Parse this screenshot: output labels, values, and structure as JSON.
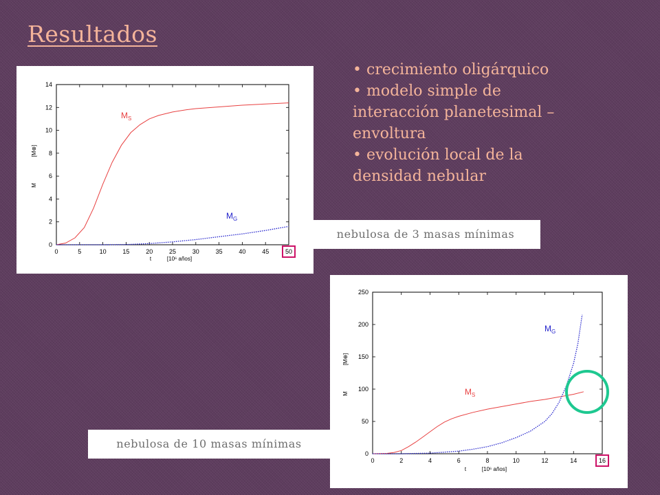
{
  "slide": {
    "title": "Resultados",
    "bullets": [
      "crecimiento oligárquico",
      "modelo simple de interacción planetesimal – envoltura",
      "evolución local de la densidad nebular"
    ]
  },
  "captions": {
    "chart1": "nebulosa de 3 masas mínimas",
    "chart2": "nebulosa de 10 masas mínimas"
  },
  "colors": {
    "background": "#5e3d5e",
    "title_text": "#f4b49a",
    "ms_curve": "#e84040",
    "mg_curve": "#2222cc",
    "highlight_box": "#cc1166",
    "highlight_circle": "#1ec890"
  },
  "chart_data": [
    {
      "type": "line",
      "title": "",
      "xlabel_main": "t",
      "xlabel_unit": "[10⁶ años]",
      "ylabel_main": "M",
      "ylabel_unit": "[M⊕]",
      "xlim": [
        0,
        50
      ],
      "ylim": [
        0,
        14
      ],
      "xticks": [
        "0",
        "5",
        "10",
        "15",
        "20",
        "25",
        "30",
        "35",
        "40",
        "45",
        "50"
      ],
      "yticks": [
        "0",
        "2",
        "4",
        "6",
        "8",
        "10",
        "12",
        "14"
      ],
      "grid": false,
      "highlighted_tick": "50",
      "series": [
        {
          "name": "MS",
          "label_main": "M",
          "label_sub": "S",
          "style": "solid",
          "color": "#e84040",
          "x": [
            0,
            2,
            4,
            6,
            8,
            10,
            12,
            14,
            16,
            18,
            20,
            22,
            25,
            28,
            30,
            35,
            40,
            45,
            50
          ],
          "y": [
            0,
            0.15,
            0.6,
            1.5,
            3.2,
            5.3,
            7.2,
            8.7,
            9.8,
            10.5,
            11.0,
            11.3,
            11.6,
            11.8,
            11.9,
            12.05,
            12.2,
            12.3,
            12.4
          ]
        },
        {
          "name": "MG",
          "label_main": "M",
          "label_sub": "G",
          "style": "dotted",
          "color": "#2222cc",
          "x": [
            0,
            5,
            10,
            15,
            20,
            25,
            30,
            35,
            40,
            45,
            50
          ],
          "y": [
            0,
            0,
            0,
            0.02,
            0.1,
            0.25,
            0.45,
            0.7,
            0.95,
            1.25,
            1.6
          ]
        }
      ]
    },
    {
      "type": "line",
      "title": "",
      "xlabel_main": "t",
      "xlabel_unit": "[10⁶ años]",
      "ylabel_main": "M",
      "ylabel_unit": "[M⊕]",
      "xlim": [
        0,
        16
      ],
      "ylim": [
        0,
        250
      ],
      "xticks": [
        "0",
        "2",
        "4",
        "6",
        "8",
        "10",
        "12",
        "14",
        "16"
      ],
      "yticks": [
        "0",
        "50",
        "100",
        "150",
        "200",
        "250"
      ],
      "grid": false,
      "highlighted_tick": "16",
      "series": [
        {
          "name": "MS",
          "label_main": "M",
          "label_sub": "S",
          "style": "solid",
          "color": "#e84040",
          "x": [
            0,
            1,
            1.5,
            2,
            2.5,
            3,
            3.5,
            4,
            4.5,
            5,
            5.5,
            6,
            7,
            8,
            9,
            10,
            11,
            12,
            13,
            14,
            14.7
          ],
          "y": [
            0,
            0.5,
            2,
            5,
            11,
            18,
            26,
            34,
            42,
            49,
            54,
            58,
            64,
            69,
            73,
            77,
            81,
            84,
            88,
            92,
            96
          ]
        },
        {
          "name": "MG",
          "label_main": "M",
          "label_sub": "G",
          "style": "dotted",
          "color": "#2222cc",
          "x": [
            0,
            2,
            4,
            6,
            7,
            8,
            9,
            10,
            11,
            12,
            12.5,
            13,
            13.5,
            14,
            14.3,
            14.6
          ],
          "y": [
            0,
            0,
            1,
            4,
            7,
            11,
            17,
            25,
            35,
            50,
            62,
            80,
            105,
            140,
            170,
            215
          ]
        }
      ]
    }
  ]
}
